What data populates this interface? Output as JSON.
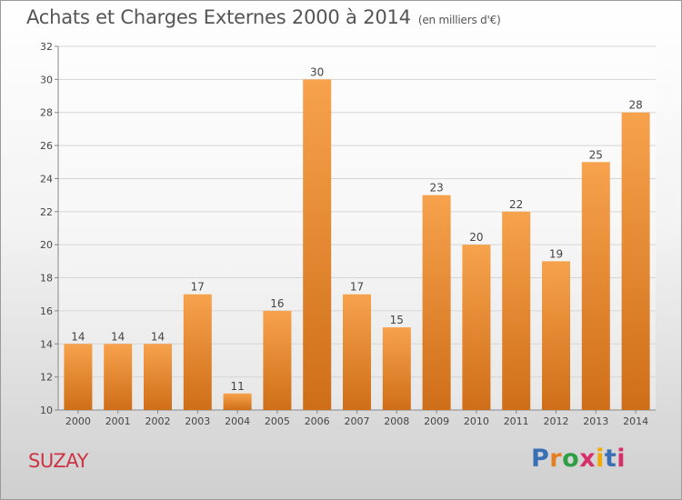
{
  "header": {
    "title": "Achats et Charges Externes 2000 à 2014",
    "unit": "(en milliers d'€)"
  },
  "footer": {
    "city": "SUZAY",
    "logo_text": "Proxiti"
  },
  "colors": {
    "bar_light": "#f7a24d",
    "bar_dark": "#cf6e18",
    "title": "#555555",
    "city": "#cc3344",
    "logo_letters": [
      "#3a6fb5",
      "#e67e22",
      "#2f9e44",
      "#d62f6a",
      "#f2a900",
      "#3a6fb5",
      "#d62f6a"
    ]
  },
  "chart_data": {
    "type": "bar",
    "categories": [
      "2000",
      "2001",
      "2002",
      "2003",
      "2004",
      "2005",
      "2006",
      "2007",
      "2008",
      "2009",
      "2010",
      "2011",
      "2012",
      "2013",
      "2014"
    ],
    "values": [
      14,
      14,
      14,
      17,
      11,
      16,
      30,
      17,
      15,
      23,
      20,
      22,
      19,
      25,
      28
    ],
    "ylim": [
      10,
      32
    ],
    "yticks": [
      10,
      12,
      14,
      16,
      18,
      20,
      22,
      24,
      26,
      28,
      30,
      32
    ],
    "grid": true,
    "legend": "none"
  }
}
